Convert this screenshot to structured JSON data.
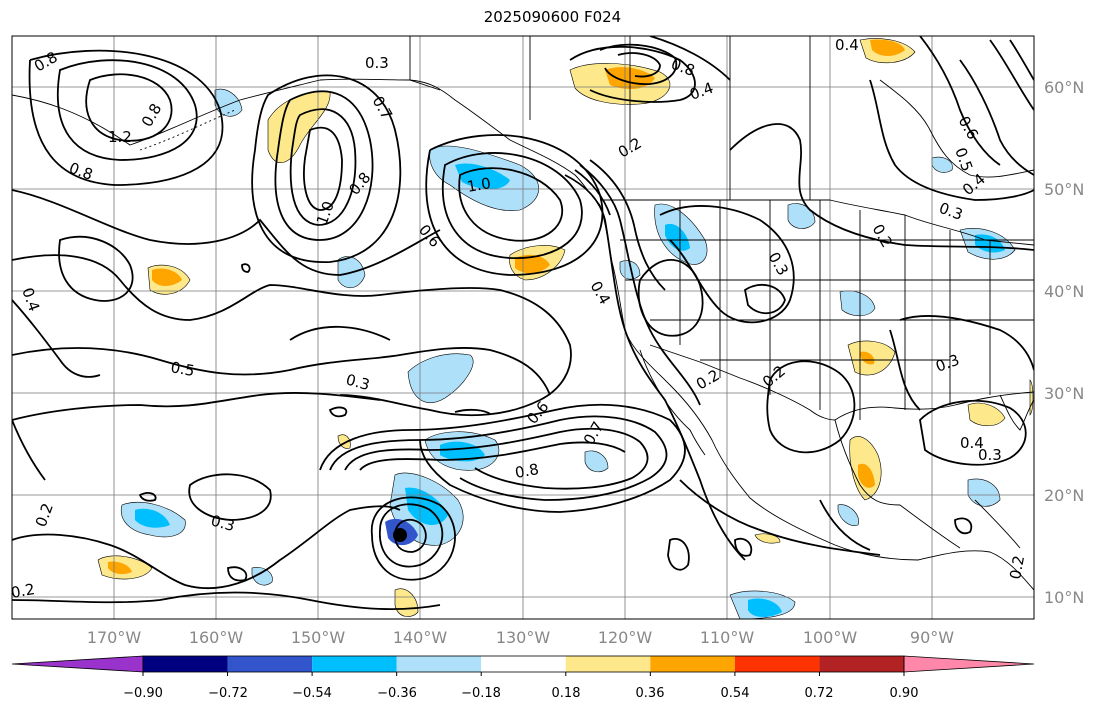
{
  "title": "2025090600 F024",
  "lon_labels": [
    "170°W",
    "160°W",
    "150°W",
    "140°W",
    "130°W",
    "120°W",
    "110°W",
    "100°W",
    "90°W"
  ],
  "lat_labels": [
    "60°N",
    "50°N",
    "40°N",
    "30°N",
    "20°N",
    "10°N"
  ],
  "colorbar": {
    "tick_labels": [
      "−0.90",
      "−0.72",
      "−0.54",
      "−0.36",
      "−0.18",
      "0.18",
      "0.36",
      "0.54",
      "0.72",
      "0.90"
    ],
    "colors": [
      "#9933cc",
      "#000080",
      "#3355cc",
      "#00bfff",
      "#aee0fa",
      "#ffffff",
      "#fde98c",
      "#ffa500",
      "#ff3300",
      "#b22222",
      "#ff88aa"
    ]
  },
  "contour_labels": [
    "0.8",
    "0.3",
    "0.8",
    "1.2",
    "0.8",
    "0.7",
    "0.8",
    "1.0",
    "0.6",
    "1.0",
    "0.2",
    "0.4",
    "0.8",
    "0.4",
    "0.5",
    "0.4",
    "0.3",
    "0.2",
    "0.3",
    "0.4",
    "0.5",
    "0.3",
    "0.6",
    "0.7",
    "0.8",
    "0.3",
    "0.2",
    "0.2",
    "0.2",
    "0.3",
    "0.4",
    "0.3",
    "0.2",
    "0.2",
    "0.6",
    "0.4"
  ]
}
